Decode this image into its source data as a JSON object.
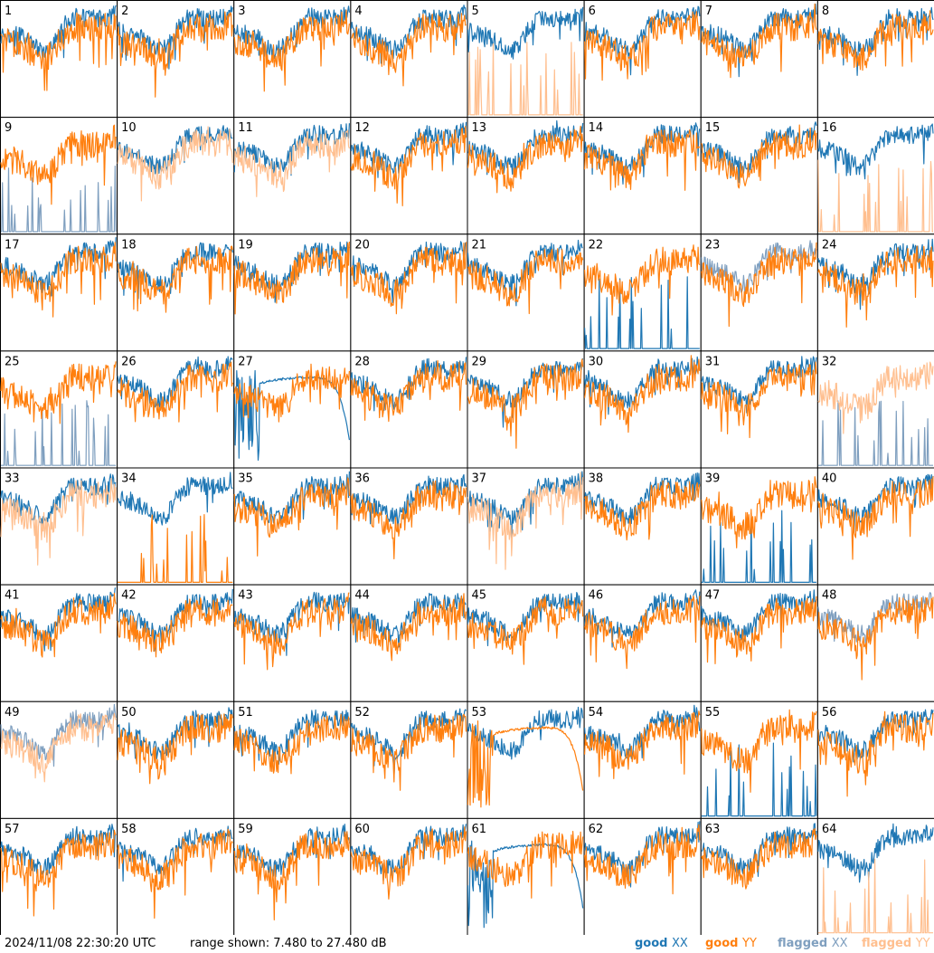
{
  "footer": {
    "timestamp": "2024/11/08 22:30:20 UTC",
    "range_text": "range shown: 7.480 to 27.480 dB"
  },
  "legend": [
    {
      "status": "good",
      "pol": "XX",
      "color": "#1f77b4"
    },
    {
      "status": "good",
      "pol": "YY",
      "color": "#ff7f0e"
    },
    {
      "status": "flagged",
      "pol": "XX",
      "color": "#7f9fbf"
    },
    {
      "status": "flagged",
      "pol": "YY",
      "color": "#ffbf8f"
    }
  ],
  "chart_data": {
    "type": "line",
    "grid": {
      "rows": 8,
      "cols": 8
    },
    "ylim": [
      7.48,
      27.48
    ],
    "yunit": "dB",
    "colors": {
      "good_xx": "#1f77b4",
      "good_yy": "#ff7f0e",
      "flagged_xx": "#7f9fbf",
      "flagged_yy": "#ffbf8f"
    },
    "panels": [
      {
        "id": "1",
        "xx": "good",
        "yy": "good",
        "xx_style": "normal",
        "yy_style": "normal"
      },
      {
        "id": "2",
        "xx": "good",
        "yy": "good",
        "xx_style": "normal",
        "yy_style": "normal"
      },
      {
        "id": "3",
        "xx": "good",
        "yy": "good",
        "xx_style": "normal",
        "yy_style": "normal"
      },
      {
        "id": "4",
        "xx": "good",
        "yy": "good",
        "xx_style": "normal",
        "yy_style": "normal"
      },
      {
        "id": "5",
        "xx": "good",
        "yy": "flagged",
        "xx_style": "normal",
        "yy_style": "spikes"
      },
      {
        "id": "6",
        "xx": "good",
        "yy": "good",
        "xx_style": "normal",
        "yy_style": "normal"
      },
      {
        "id": "7",
        "xx": "good",
        "yy": "good",
        "xx_style": "normal",
        "yy_style": "normal"
      },
      {
        "id": "8",
        "xx": "good",
        "yy": "good",
        "xx_style": "normal",
        "yy_style": "normal"
      },
      {
        "id": "9",
        "xx": "flagged",
        "yy": "good",
        "xx_style": "spikes",
        "yy_style": "normal"
      },
      {
        "id": "10",
        "xx": "good",
        "yy": "flagged",
        "xx_style": "normal",
        "yy_style": "normal"
      },
      {
        "id": "11",
        "xx": "good",
        "yy": "flagged",
        "xx_style": "normal",
        "yy_style": "normal"
      },
      {
        "id": "12",
        "xx": "good",
        "yy": "good",
        "xx_style": "normal",
        "yy_style": "normal"
      },
      {
        "id": "13",
        "xx": "good",
        "yy": "good",
        "xx_style": "normal",
        "yy_style": "normal"
      },
      {
        "id": "14",
        "xx": "good",
        "yy": "good",
        "xx_style": "normal",
        "yy_style": "normal"
      },
      {
        "id": "15",
        "xx": "good",
        "yy": "good",
        "xx_style": "normal",
        "yy_style": "normal"
      },
      {
        "id": "16",
        "xx": "good",
        "yy": "flagged",
        "xx_style": "normal",
        "yy_style": "spikes"
      },
      {
        "id": "17",
        "xx": "good",
        "yy": "good",
        "xx_style": "normal",
        "yy_style": "normal"
      },
      {
        "id": "18",
        "xx": "good",
        "yy": "good",
        "xx_style": "normal",
        "yy_style": "normal"
      },
      {
        "id": "19",
        "xx": "good",
        "yy": "good",
        "xx_style": "normal",
        "yy_style": "normal"
      },
      {
        "id": "20",
        "xx": "good",
        "yy": "good",
        "xx_style": "normal",
        "yy_style": "normal"
      },
      {
        "id": "21",
        "xx": "good",
        "yy": "good",
        "xx_style": "normal",
        "yy_style": "normal"
      },
      {
        "id": "22",
        "xx": "good",
        "yy": "good",
        "xx_style": "spikes",
        "yy_style": "normal"
      },
      {
        "id": "23",
        "xx": "flagged",
        "yy": "good",
        "xx_style": "normal",
        "yy_style": "normal"
      },
      {
        "id": "24",
        "xx": "good",
        "yy": "good",
        "xx_style": "normal",
        "yy_style": "normal"
      },
      {
        "id": "25",
        "xx": "flagged",
        "yy": "good",
        "xx_style": "spikes",
        "yy_style": "normal"
      },
      {
        "id": "26",
        "xx": "good",
        "yy": "good",
        "xx_style": "normal",
        "yy_style": "normal"
      },
      {
        "id": "27",
        "xx": "good",
        "yy": "good",
        "xx_style": "dome",
        "yy_style": "normal"
      },
      {
        "id": "28",
        "xx": "good",
        "yy": "good",
        "xx_style": "normal",
        "yy_style": "normal"
      },
      {
        "id": "29",
        "xx": "good",
        "yy": "good",
        "xx_style": "normal",
        "yy_style": "normal"
      },
      {
        "id": "30",
        "xx": "good",
        "yy": "good",
        "xx_style": "normal",
        "yy_style": "normal"
      },
      {
        "id": "31",
        "xx": "good",
        "yy": "good",
        "xx_style": "normal",
        "yy_style": "normal"
      },
      {
        "id": "32",
        "xx": "flagged",
        "yy": "flagged",
        "xx_style": "spikes",
        "yy_style": "normal"
      },
      {
        "id": "33",
        "xx": "good",
        "yy": "flagged",
        "xx_style": "normal",
        "yy_style": "normal"
      },
      {
        "id": "34",
        "xx": "good",
        "yy": "good",
        "xx_style": "normal",
        "yy_style": "spikes"
      },
      {
        "id": "35",
        "xx": "good",
        "yy": "good",
        "xx_style": "normal",
        "yy_style": "normal"
      },
      {
        "id": "36",
        "xx": "good",
        "yy": "good",
        "xx_style": "normal",
        "yy_style": "normal"
      },
      {
        "id": "37",
        "xx": "good",
        "yy": "flagged",
        "xx_style": "normal",
        "yy_style": "normal"
      },
      {
        "id": "38",
        "xx": "good",
        "yy": "good",
        "xx_style": "normal",
        "yy_style": "normal"
      },
      {
        "id": "39",
        "xx": "good",
        "yy": "good",
        "xx_style": "spikes",
        "yy_style": "normal"
      },
      {
        "id": "40",
        "xx": "good",
        "yy": "good",
        "xx_style": "normal",
        "yy_style": "normal"
      },
      {
        "id": "41",
        "xx": "good",
        "yy": "good",
        "xx_style": "normal",
        "yy_style": "normal"
      },
      {
        "id": "42",
        "xx": "good",
        "yy": "good",
        "xx_style": "normal",
        "yy_style": "normal"
      },
      {
        "id": "43",
        "xx": "good",
        "yy": "good",
        "xx_style": "normal",
        "yy_style": "normal"
      },
      {
        "id": "44",
        "xx": "good",
        "yy": "good",
        "xx_style": "normal",
        "yy_style": "normal"
      },
      {
        "id": "45",
        "xx": "good",
        "yy": "good",
        "xx_style": "normal",
        "yy_style": "normal"
      },
      {
        "id": "46",
        "xx": "good",
        "yy": "good",
        "xx_style": "normal",
        "yy_style": "normal"
      },
      {
        "id": "47",
        "xx": "good",
        "yy": "good",
        "xx_style": "normal",
        "yy_style": "normal"
      },
      {
        "id": "48",
        "xx": "flagged",
        "yy": "good",
        "xx_style": "normal",
        "yy_style": "normal"
      },
      {
        "id": "49",
        "xx": "flagged",
        "yy": "flagged",
        "xx_style": "normal",
        "yy_style": "normal"
      },
      {
        "id": "50",
        "xx": "good",
        "yy": "good",
        "xx_style": "normal",
        "yy_style": "normal"
      },
      {
        "id": "51",
        "xx": "good",
        "yy": "good",
        "xx_style": "normal",
        "yy_style": "normal"
      },
      {
        "id": "52",
        "xx": "good",
        "yy": "good",
        "xx_style": "normal",
        "yy_style": "normal"
      },
      {
        "id": "53",
        "xx": "good",
        "yy": "good",
        "xx_style": "normal",
        "yy_style": "dome"
      },
      {
        "id": "54",
        "xx": "good",
        "yy": "good",
        "xx_style": "normal",
        "yy_style": "normal"
      },
      {
        "id": "55",
        "xx": "good",
        "yy": "good",
        "xx_style": "spikes",
        "yy_style": "normal"
      },
      {
        "id": "56",
        "xx": "good",
        "yy": "good",
        "xx_style": "normal",
        "yy_style": "normal"
      },
      {
        "id": "57",
        "xx": "good",
        "yy": "good",
        "xx_style": "normal",
        "yy_style": "normal"
      },
      {
        "id": "58",
        "xx": "good",
        "yy": "good",
        "xx_style": "normal",
        "yy_style": "normal"
      },
      {
        "id": "59",
        "xx": "good",
        "yy": "good",
        "xx_style": "normal",
        "yy_style": "normal"
      },
      {
        "id": "60",
        "xx": "good",
        "yy": "good",
        "xx_style": "normal",
        "yy_style": "normal"
      },
      {
        "id": "61",
        "xx": "good",
        "yy": "good",
        "xx_style": "dome",
        "yy_style": "normal"
      },
      {
        "id": "62",
        "xx": "good",
        "yy": "good",
        "xx_style": "normal",
        "yy_style": "normal"
      },
      {
        "id": "63",
        "xx": "good",
        "yy": "good",
        "xx_style": "normal",
        "yy_style": "normal"
      },
      {
        "id": "64",
        "xx": "good",
        "yy": "flagged",
        "xx_style": "normal",
        "yy_style": "spikes"
      }
    ]
  }
}
